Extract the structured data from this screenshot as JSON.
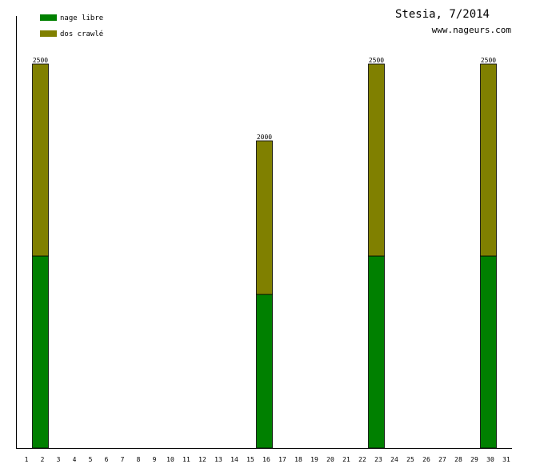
{
  "chart_data": {
    "type": "bar",
    "stacked": true,
    "title": "Stesia, 7/2014",
    "subtitle": "www.nageurs.com",
    "categories": [
      "1",
      "2",
      "3",
      "4",
      "5",
      "6",
      "7",
      "8",
      "9",
      "10",
      "11",
      "12",
      "13",
      "14",
      "15",
      "16",
      "17",
      "18",
      "19",
      "20",
      "21",
      "22",
      "23",
      "24",
      "25",
      "26",
      "27",
      "28",
      "29",
      "30",
      "31"
    ],
    "series": [
      {
        "name": "nage libre",
        "color": "#008000",
        "values": [
          0,
          1250,
          0,
          0,
          0,
          0,
          0,
          0,
          0,
          0,
          0,
          0,
          0,
          0,
          0,
          1000,
          0,
          0,
          0,
          0,
          0,
          0,
          1250,
          0,
          0,
          0,
          0,
          0,
          0,
          1250,
          0
        ]
      },
      {
        "name": "dos crawlé",
        "color": "#808000",
        "values": [
          0,
          1250,
          0,
          0,
          0,
          0,
          0,
          0,
          0,
          0,
          0,
          0,
          0,
          0,
          0,
          1000,
          0,
          0,
          0,
          0,
          0,
          0,
          1250,
          0,
          0,
          0,
          0,
          0,
          0,
          1250,
          0
        ]
      }
    ],
    "totals": [
      {
        "category": "2",
        "label": "2500"
      },
      {
        "category": "16",
        "label": "2000"
      },
      {
        "category": "23",
        "label": "2500"
      },
      {
        "category": "30",
        "label": "2500"
      }
    ],
    "ylim": [
      0,
      2500
    ],
    "grid": false,
    "legend_position": "top-left"
  }
}
